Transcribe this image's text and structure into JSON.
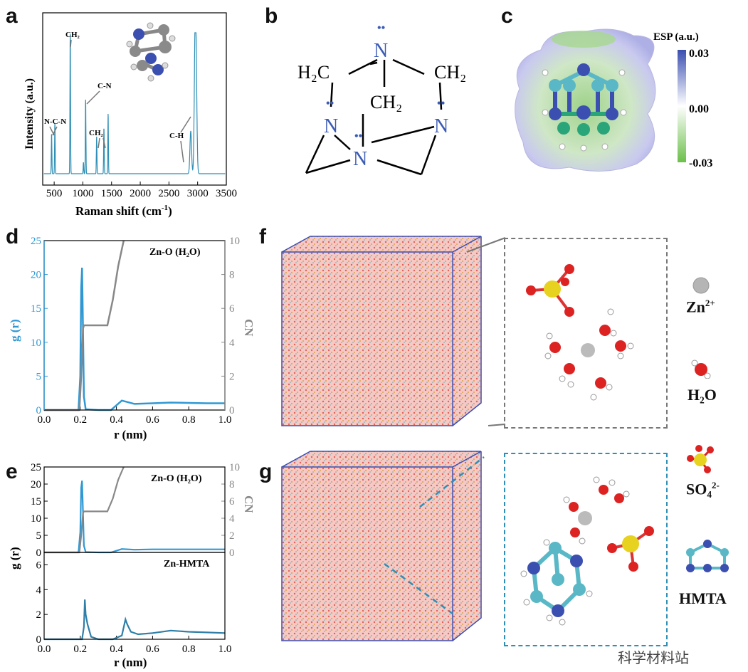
{
  "panels": {
    "a": {
      "label": "a"
    },
    "b": {
      "label": "b"
    },
    "c": {
      "label": "c"
    },
    "d": {
      "label": "d"
    },
    "e": {
      "label": "e"
    },
    "f": {
      "label": "f"
    },
    "g": {
      "label": "g"
    }
  },
  "panel_a": {
    "xlabel": "Raman shift (cm",
    "xlabel_sup": "-1",
    "xlabel_end": ")",
    "ylabel": "Intensity (a.u.)",
    "annotations": [
      "CH₂",
      "C-N",
      "N-C-N",
      "CH₂",
      "C-H"
    ]
  },
  "panel_b": {
    "atoms": {
      "n_top": "N",
      "h2c_left": "H₂C",
      "ch2_right": "CH₂",
      "ch2_center": "CH₂",
      "n_left": "N",
      "n_right": "N",
      "n_bottom": "N"
    },
    "lone_pair": "••"
  },
  "panel_c": {
    "colorbar_title": "ESP (a.u.)",
    "max": "0.03",
    "mid": "0.00",
    "min": "-0.03",
    "colors": {
      "top": "#3b4fb0",
      "mid": "#ffffff",
      "bottom": "#6cc04a"
    }
  },
  "panel_d": {
    "annotation": "Zn-O (H₂O)",
    "xlabel": "r (nm)",
    "ylabel_left": "g (r)",
    "ylabel_right": "CN"
  },
  "panel_e": {
    "annotation_top": "Zn-O (H₂O)",
    "annotation_bottom": "Zn-HMTA",
    "xlabel": "r (nm)",
    "ylabel_left": "g (r)",
    "ylabel_right": "CN"
  },
  "legend": {
    "zn": "Zn",
    "zn_sup": "2+",
    "h2o": "H₂O",
    "so4": "SO₄",
    "so4_sup": "2-",
    "hmta": "HMTA"
  },
  "watermark": "科学材料站",
  "chart_data": [
    {
      "type": "line",
      "panel": "a",
      "xlabel": "Raman shift (cm-1)",
      "ylabel": "Intensity (a.u.)",
      "xlim": [
        300,
        3500
      ],
      "x_ticks": [
        500,
        1000,
        1500,
        2000,
        2500,
        3000,
        3500
      ],
      "peaks": [
        {
          "x": 455,
          "y": 0.28
        },
        {
          "x": 512,
          "y": 0.35
        },
        {
          "x": 780,
          "y": 0.98
        },
        {
          "x": 1010,
          "y": 0.08
        },
        {
          "x": 1048,
          "y": 0.52
        },
        {
          "x": 1240,
          "y": 0.26
        },
        {
          "x": 1367,
          "y": 0.32
        },
        {
          "x": 1440,
          "y": 0.42
        },
        {
          "x": 2880,
          "y": 0.3
        },
        {
          "x": 2955,
          "y": 0.88
        },
        {
          "x": 2975,
          "y": 0.6
        }
      ]
    },
    {
      "type": "line",
      "panel": "d",
      "xlabel": "r (nm)",
      "xlim": [
        0.0,
        1.0
      ],
      "x_ticks": [
        0.0,
        0.2,
        0.4,
        0.6,
        0.8,
        1.0
      ],
      "ylim_left": [
        0,
        25
      ],
      "y_ticks_left": [
        0,
        5,
        10,
        15,
        20,
        25
      ],
      "ylim_right": [
        0,
        10
      ],
      "y_ticks_right": [
        0,
        2,
        4,
        6,
        8,
        10
      ],
      "series": [
        {
          "name": "g (r)",
          "color": "#2f98d3",
          "axis": "left",
          "x": [
            0.0,
            0.19,
            0.2,
            0.205,
            0.21,
            0.215,
            0.22,
            0.23,
            0.3,
            0.37,
            0.43,
            0.5,
            0.6,
            0.7,
            0.8,
            0.9,
            1.0
          ],
          "y": [
            0,
            0,
            5,
            18,
            21,
            12,
            2,
            0.1,
            0,
            0,
            1.4,
            0.9,
            1.0,
            1.1,
            1.05,
            1.0,
            1.0
          ]
        },
        {
          "name": "CN",
          "color": "#888888",
          "axis": "right",
          "x": [
            0.0,
            0.195,
            0.205,
            0.215,
            0.22,
            0.35,
            0.38,
            0.41,
            0.44
          ],
          "y": [
            0,
            0,
            2.0,
            4.8,
            5.0,
            5.0,
            6.5,
            8.5,
            10
          ]
        }
      ]
    },
    {
      "type": "line",
      "panel": "e",
      "xlabel": "r (nm)",
      "xlim": [
        0.0,
        1.0
      ],
      "x_ticks": [
        0.0,
        0.2,
        0.4,
        0.6,
        0.8,
        1.0
      ],
      "top": {
        "ylim_left": [
          0,
          25
        ],
        "y_ticks_left": [
          0,
          5,
          10,
          15,
          20,
          25
        ],
        "ylim_right": [
          0,
          10
        ],
        "y_ticks_right": [
          0,
          2,
          4,
          6,
          8,
          10
        ],
        "series": [
          {
            "name": "g (r)",
            "color": "#2f98d3",
            "axis": "left",
            "x": [
              0.0,
              0.19,
              0.2,
              0.205,
              0.21,
              0.215,
              0.22,
              0.23,
              0.3,
              0.37,
              0.43,
              0.5,
              0.6,
              0.7,
              0.8,
              0.9,
              1.0
            ],
            "y": [
              0,
              0,
              6,
              19,
              21,
              12,
              2,
              0.1,
              0,
              0,
              1.0,
              0.8,
              0.9,
              0.9,
              0.9,
              0.9,
              0.9
            ]
          },
          {
            "name": "CN",
            "color": "#888888",
            "axis": "right",
            "x": [
              0.0,
              0.195,
              0.205,
              0.215,
              0.22,
              0.35,
              0.38,
              0.41,
              0.44
            ],
            "y": [
              0,
              0,
              2.0,
              4.6,
              4.8,
              4.8,
              6.3,
              8.5,
              10
            ]
          }
        ]
      },
      "bottom": {
        "ylim": [
          0,
          7
        ],
        "y_ticks": [
          0,
          2,
          4,
          6
        ],
        "series": [
          {
            "name": "g (r)",
            "color": "#2f98d3",
            "x": [
              0.0,
              0.21,
              0.22,
              0.225,
              0.23,
              0.24,
              0.26,
              0.3,
              0.38,
              0.43,
              0.45,
              0.46,
              0.48,
              0.52,
              0.6,
              0.7,
              0.8,
              0.9,
              1.0
            ],
            "y": [
              0,
              0,
              1.0,
              3.2,
              2.0,
              1.2,
              0.2,
              0,
              0,
              0.3,
              1.6,
              1.2,
              0.6,
              0.4,
              0.5,
              0.7,
              0.6,
              0.55,
              0.5
            ]
          }
        ]
      }
    }
  ]
}
